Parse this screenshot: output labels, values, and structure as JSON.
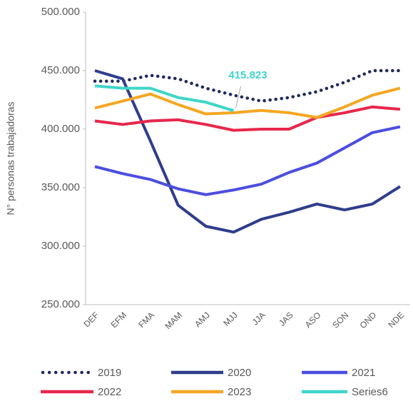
{
  "chart_data": {
    "type": "line",
    "y_label": "N° personas trabajadoras",
    "categories": [
      "DEF",
      "EFM",
      "FMA",
      "MAM",
      "AMJ",
      "MJJ",
      "JJA",
      "JAS",
      "ASO",
      "SON",
      "OND",
      "NDE"
    ],
    "ylim": [
      250000,
      500000
    ],
    "yticks": [
      {
        "value": 250000,
        "label": "250.000"
      },
      {
        "value": 300000,
        "label": "300.000"
      },
      {
        "value": 350000,
        "label": "350.000"
      },
      {
        "value": 400000,
        "label": "400.000"
      },
      {
        "value": 450000,
        "label": "450.000"
      },
      {
        "value": 500000,
        "label": "500.000"
      }
    ],
    "series": [
      {
        "name": "2019",
        "color": "#1f2a5c",
        "style": "dotted",
        "values": [
          441000,
          441000,
          446000,
          443000,
          435000,
          429000,
          424000,
          427000,
          432000,
          440000,
          450000,
          450000
        ]
      },
      {
        "name": "2020",
        "color": "#2e3d8c",
        "style": "solid",
        "values": [
          450000,
          443000,
          390000,
          335000,
          317000,
          312000,
          323000,
          329000,
          336000,
          331000,
          336000,
          351000
        ]
      },
      {
        "name": "2021",
        "color": "#4b4ee0",
        "style": "solid",
        "values": [
          368000,
          362000,
          357000,
          349000,
          344000,
          348000,
          353000,
          363000,
          371000,
          384000,
          397000,
          402000
        ]
      },
      {
        "name": "2022",
        "color": "#e8274b",
        "style": "solid",
        "values": [
          407000,
          404000,
          407000,
          408000,
          404000,
          399000,
          400000,
          400000,
          410000,
          414000,
          419000,
          417000
        ]
      },
      {
        "name": "2023",
        "color": "#f5a623",
        "style": "solid",
        "values": [
          418000,
          424000,
          430000,
          421000,
          413000,
          414000,
          416000,
          414000,
          410000,
          419000,
          429000,
          435000
        ]
      },
      {
        "name": "Series6",
        "color": "#3fd6c8",
        "style": "solid",
        "values": [
          437000,
          435000,
          435000,
          427000,
          423000,
          415823,
          null,
          null,
          null,
          null,
          null,
          null
        ],
        "value_labels": [
          null,
          null,
          null,
          null,
          null,
          "415.823",
          null,
          null,
          null,
          null,
          null,
          null
        ]
      }
    ]
  }
}
